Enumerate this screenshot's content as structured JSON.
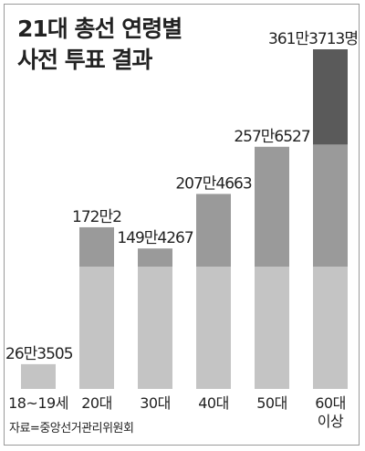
{
  "title_lines": [
    "21대 총선 연령별",
    "사전 투표 결과"
  ],
  "source": "자료=중앙선거관리위원회",
  "colors": {
    "seg_bottom": "#c4c4c4",
    "seg_middle": "#9a9a9a",
    "seg_top": "#5a5a5a",
    "text": "#222222",
    "frame": "#9a9a9a"
  },
  "chart_data": {
    "type": "bar",
    "categories": [
      "18~19세",
      "20대",
      "30대",
      "40대",
      "50대",
      "60대 이상"
    ],
    "category_lines": [
      [
        "18~19세"
      ],
      [
        "20대"
      ],
      [
        "30대"
      ],
      [
        "40대"
      ],
      [
        "50대"
      ],
      [
        "60대",
        "이상"
      ]
    ],
    "values": [
      263505,
      1720002,
      1494267,
      2074663,
      2576527,
      3613713
    ],
    "value_labels": [
      "26만3505",
      "172만2",
      "149만4267",
      "207만4663",
      "257만6527",
      "361만3713명"
    ],
    "ylim": [
      0,
      3613713
    ],
    "tiers": [
      1300000,
      2600000
    ],
    "title": "21대 총선 연령별 사전 투표 결과",
    "xlabel": "",
    "ylabel": "",
    "grid": false,
    "legend": "none"
  }
}
